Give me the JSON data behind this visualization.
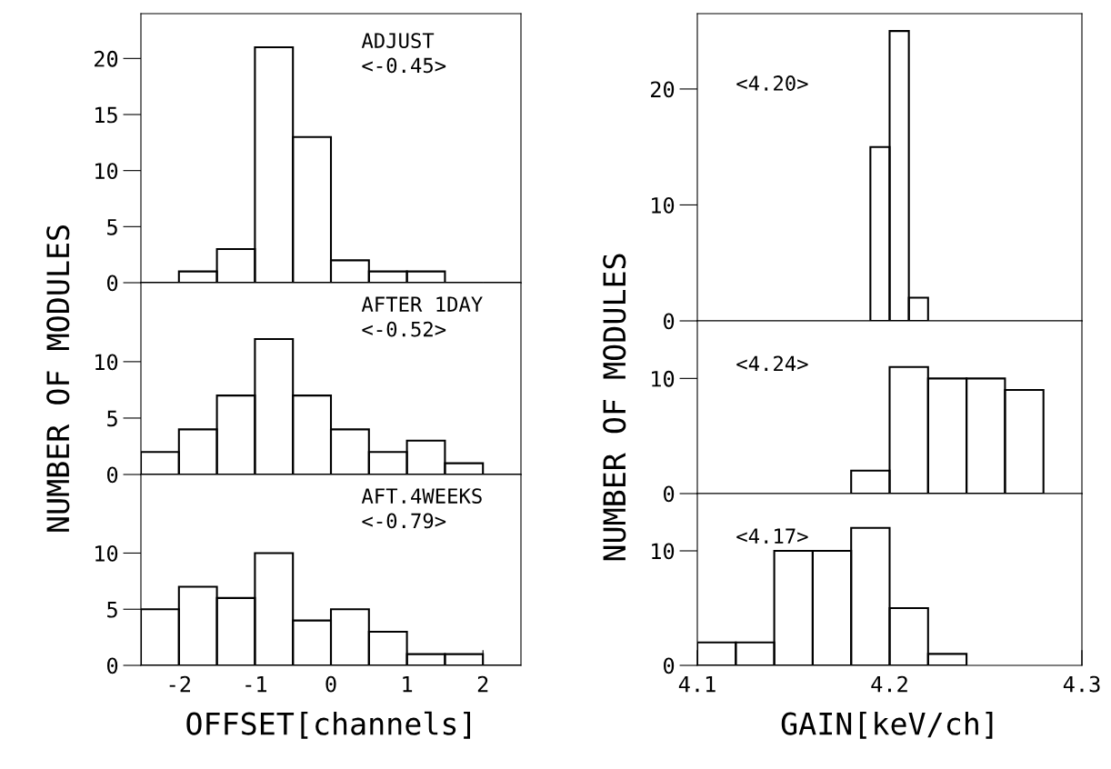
{
  "chart_data": [
    {
      "type": "histogram",
      "color": "#000000",
      "bins": [
        -2.5,
        -2,
        -1.5,
        -1,
        -0.5,
        0,
        0.5,
        1,
        1.5,
        2,
        2.5
      ],
      "values": [
        0,
        1,
        3,
        21,
        13,
        2,
        1,
        1,
        0,
        0
      ],
      "xlim": [
        -2.5,
        2.5
      ],
      "ylim": [
        0,
        24
      ],
      "yticks": [
        0,
        5,
        10,
        15,
        20
      ],
      "tick_labels": "y",
      "annotations": [
        "ADJUST",
        "<-0.45>"
      ]
    },
    {
      "type": "histogram",
      "color": "#000000",
      "bins": [
        -2.5,
        -2,
        -1.5,
        -1,
        -0.5,
        0,
        0.5,
        1,
        1.5,
        2,
        2.5
      ],
      "values": [
        2,
        4,
        7,
        12,
        7,
        4,
        2,
        3,
        1,
        0
      ],
      "xlim": [
        -2.5,
        2.5
      ],
      "ylim": [
        0,
        17
      ],
      "yticks": [
        0,
        5,
        10
      ],
      "tick_labels": "y",
      "ylabel": "NUMBER OF MODULES",
      "annotations": [
        "AFTER 1DAY",
        "<-0.52>"
      ]
    },
    {
      "type": "histogram",
      "color": "#000000",
      "bins": [
        -2.5,
        -2,
        -1.5,
        -1,
        -0.5,
        0,
        0.5,
        1,
        1.5,
        2,
        2.5
      ],
      "values": [
        5,
        7,
        6,
        10,
        4,
        5,
        3,
        1,
        1,
        0
      ],
      "xlim": [
        -2.5,
        2.5
      ],
      "ylim": [
        0,
        17
      ],
      "yticks": [
        0,
        5,
        10
      ],
      "xticks": [
        -2,
        -1,
        0,
        1,
        2
      ],
      "xlabel": "OFFSET[channels]",
      "annotations": [
        "AFT.4WEEKS",
        "<-0.79>"
      ]
    },
    {
      "type": "histogram",
      "color": "#000000",
      "bins": [
        4.19,
        4.2,
        4.21,
        4.22
      ],
      "values": [
        15,
        25,
        2
      ],
      "xlim": [
        4.1,
        4.3
      ],
      "ylim": [
        0,
        26.5
      ],
      "yticks": [
        0,
        10,
        20
      ],
      "tick_labels": "y",
      "annotations": [
        "<4.20>"
      ]
    },
    {
      "type": "histogram",
      "color": "#000000",
      "bins": [
        4.18,
        4.2,
        4.22,
        4.24,
        4.26,
        4.28
      ],
      "values": [
        2,
        11,
        10,
        10,
        9
      ],
      "xlim": [
        4.1,
        4.3
      ],
      "ylim": [
        0,
        15
      ],
      "yticks": [
        0,
        10
      ],
      "tick_labels": "y",
      "ylabel": "NUMBER OF MODULES",
      "annotations": [
        "<4.24>"
      ]
    },
    {
      "type": "histogram",
      "color": "#000000",
      "bins": [
        4.1,
        4.12,
        4.14,
        4.16,
        4.18,
        4.2,
        4.22,
        4.24
      ],
      "values": [
        2,
        2,
        10,
        10,
        12,
        5,
        1
      ],
      "xlim": [
        4.1,
        4.3
      ],
      "ylim": [
        0,
        15
      ],
      "yticks": [
        0,
        10
      ],
      "xticks": [
        4.1,
        4.2,
        4.3
      ],
      "xlabel": "GAIN[keV/ch]",
      "annotations": [
        "<4.17>"
      ]
    }
  ]
}
